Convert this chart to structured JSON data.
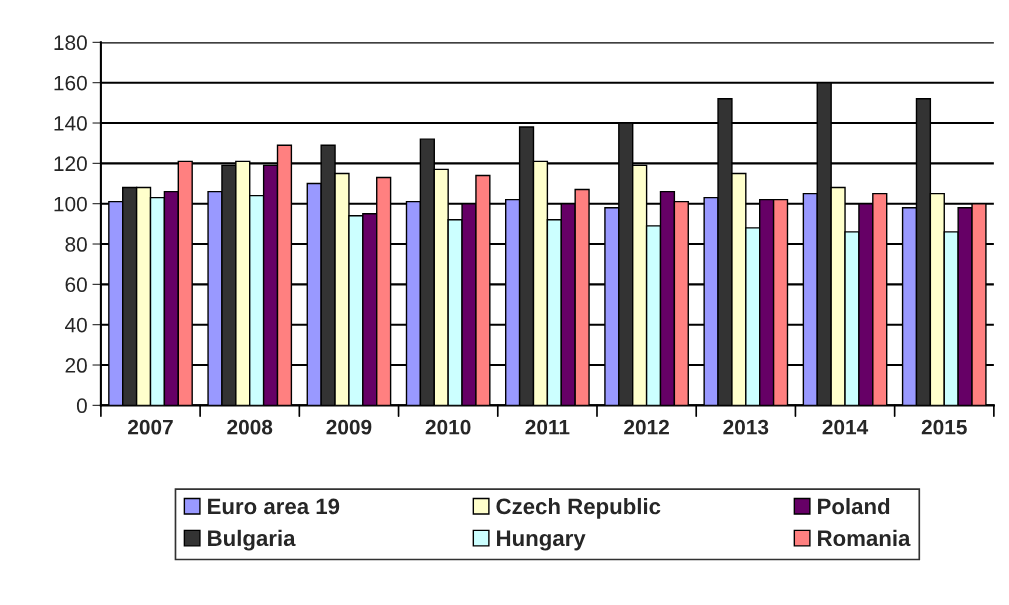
{
  "chart_data": {
    "type": "bar",
    "categories": [
      "2007",
      "2008",
      "2009",
      "2010",
      "2011",
      "2012",
      "2013",
      "2014",
      "2015"
    ],
    "series": [
      {
        "name": "Euro area 19",
        "color": "#9999ff",
        "values": [
          101,
          106,
          110,
          101,
          102,
          98,
          103,
          105,
          98
        ]
      },
      {
        "name": "Bulgaria",
        "color": "#333333",
        "values": [
          108,
          119,
          129,
          132,
          138,
          140,
          152,
          160,
          152
        ]
      },
      {
        "name": "Czech Republic",
        "color": "#ffffcc",
        "values": [
          108,
          121,
          115,
          117,
          121,
          119,
          115,
          108,
          105
        ]
      },
      {
        "name": "Hungary",
        "color": "#ccffff",
        "values": [
          103,
          104,
          94,
          92,
          92,
          89,
          88,
          86,
          86
        ]
      },
      {
        "name": "Poland",
        "color": "#660066",
        "values": [
          106,
          119,
          95,
          100,
          100,
          106,
          102,
          100,
          98
        ]
      },
      {
        "name": "Romania",
        "color": "#ff8080",
        "values": [
          121,
          129,
          113,
          114,
          107,
          101,
          102,
          105,
          100
        ]
      }
    ],
    "ylim": [
      0,
      180
    ],
    "yticks": [
      0,
      20,
      40,
      60,
      80,
      100,
      120,
      140,
      160,
      180
    ],
    "grid": "y",
    "legend": "bottom"
  }
}
